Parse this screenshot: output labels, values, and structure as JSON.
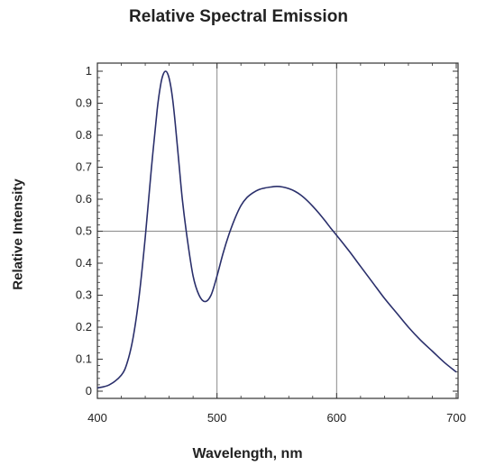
{
  "chart_data": {
    "type": "line",
    "title": "Relative Spectral Emission",
    "xlabel": "Wavelength, nm",
    "ylabel": "Relative Intensity",
    "xlim": [
      400,
      700
    ],
    "ylim": [
      0,
      1
    ],
    "grid": true,
    "xticks": [
      "400",
      "500",
      "600",
      "700"
    ],
    "yticks": [
      "0",
      "0.1",
      "0.2",
      "0.3",
      "0.4",
      "0.5",
      "0.6",
      "0.7",
      "0.8",
      "0.9",
      "1"
    ],
    "series": [
      {
        "color": "#2a2f6b",
        "x": [
          400,
          410,
          420,
          425,
          430,
          435,
          440,
          445,
          450,
          453,
          455,
          457,
          459,
          461,
          463,
          465,
          468,
          471,
          475,
          480,
          485,
          490,
          495,
          500,
          505,
          510,
          515,
          520,
          525,
          530,
          535,
          540,
          545,
          550,
          555,
          560,
          565,
          570,
          575,
          580,
          585,
          590,
          595,
          600,
          610,
          620,
          630,
          640,
          650,
          660,
          670,
          680,
          690,
          700
        ],
        "y": [
          0.01,
          0.02,
          0.05,
          0.09,
          0.17,
          0.3,
          0.48,
          0.69,
          0.88,
          0.96,
          0.99,
          1.0,
          0.99,
          0.96,
          0.91,
          0.84,
          0.72,
          0.6,
          0.48,
          0.36,
          0.3,
          0.28,
          0.3,
          0.36,
          0.43,
          0.49,
          0.54,
          0.58,
          0.605,
          0.62,
          0.63,
          0.635,
          0.638,
          0.64,
          0.638,
          0.633,
          0.625,
          0.613,
          0.597,
          0.578,
          0.557,
          0.534,
          0.51,
          0.487,
          0.44,
          0.39,
          0.34,
          0.29,
          0.245,
          0.2,
          0.16,
          0.125,
          0.09,
          0.06
        ]
      }
    ]
  }
}
